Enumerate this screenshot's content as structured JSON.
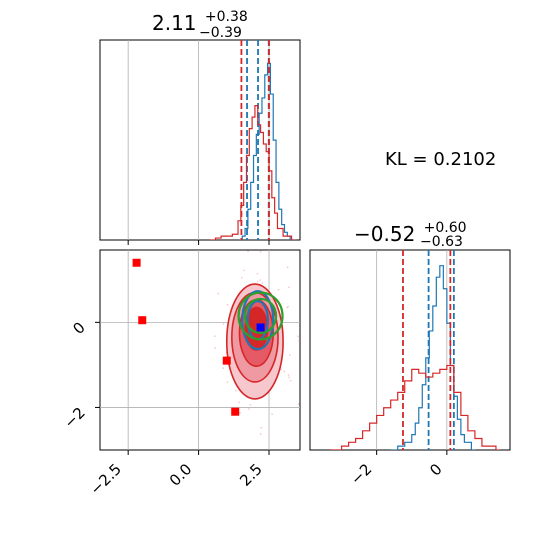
{
  "chart_data": {
    "type": "corner",
    "annotation": "KL = 0.2102",
    "colors": {
      "red": "#d62728",
      "blue": "#1f77b4",
      "green": "#2ca02c",
      "marker_blue": "#0000ff",
      "marker_red": "#ff0000"
    },
    "grid": true,
    "panels": [
      {
        "id": "p1",
        "kind": "histogram",
        "title": {
          "value": "2.11",
          "plus": "+0.38",
          "minus": "−0.39"
        },
        "xlim": [
          -3.5,
          3.6
        ],
        "ylim": [
          0,
          1
        ],
        "xgrid": [
          -2.5,
          0.0,
          2.5
        ],
        "series": [
          {
            "name": "blue",
            "vlines": [
              1.72,
              2.11,
              2.49
            ],
            "bins": [
              [
                1.45,
                0.0
              ],
              [
                1.55,
                0.02
              ],
              [
                1.65,
                0.06
              ],
              [
                1.75,
                0.16
              ],
              [
                1.85,
                0.3
              ],
              [
                1.95,
                0.44
              ],
              [
                2.05,
                0.55
              ],
              [
                2.15,
                0.66
              ],
              [
                2.25,
                0.74
              ],
              [
                2.35,
                0.86
              ],
              [
                2.45,
                0.92
              ],
              [
                2.55,
                0.76
              ],
              [
                2.65,
                0.52
              ],
              [
                2.75,
                0.3
              ],
              [
                2.85,
                0.16
              ],
              [
                2.95,
                0.08
              ],
              [
                3.05,
                0.04
              ],
              [
                3.15,
                0.02
              ],
              [
                3.25,
                0.0
              ]
            ]
          },
          {
            "name": "red",
            "vlines": [
              1.52,
              2.5
            ],
            "bins": [
              [
                0.4,
                0.0
              ],
              [
                0.6,
                0.01
              ],
              [
                0.8,
                0.02
              ],
              [
                1.0,
                0.02
              ],
              [
                1.2,
                0.03
              ],
              [
                1.4,
                0.1
              ],
              [
                1.5,
                0.18
              ],
              [
                1.6,
                0.3
              ],
              [
                1.7,
                0.44
              ],
              [
                1.8,
                0.58
              ],
              [
                1.9,
                0.64
              ],
              [
                2.0,
                0.7
              ],
              [
                2.1,
                0.6
              ],
              [
                2.2,
                0.56
              ],
              [
                2.3,
                0.5
              ],
              [
                2.4,
                0.46
              ],
              [
                2.5,
                0.36
              ],
              [
                2.6,
                0.22
              ],
              [
                2.7,
                0.14
              ],
              [
                2.8,
                0.06
              ],
              [
                3.0,
                0.02
              ],
              [
                3.3,
                0.0
              ]
            ]
          }
        ]
      },
      {
        "id": "p2",
        "kind": "2d-density",
        "xlim": [
          -3.5,
          3.6
        ],
        "ylim": [
          -3.0,
          1.7
        ],
        "xticks": [
          "−2.5",
          "0.0",
          "2.5"
        ],
        "xtick_values": [
          -2.5,
          0.0,
          2.5
        ],
        "yticks": [
          "0",
          "−2"
        ],
        "ytick_values": [
          0,
          -2
        ],
        "red_markers": [
          [
            -2.2,
            1.4
          ],
          [
            -2.0,
            0.05
          ],
          [
            1.0,
            -0.9
          ],
          [
            1.3,
            -2.1
          ]
        ],
        "blue_marker": [
          2.2,
          -0.12
        ],
        "contours": {
          "red": [
            {
              "cx": 2.0,
              "cy": -0.45,
              "rx": 1.0,
              "ry": 1.35
            },
            {
              "cx": 2.0,
              "cy": -0.35,
              "rx": 0.82,
              "ry": 1.05
            },
            {
              "cx": 2.05,
              "cy": -0.25,
              "rx": 0.6,
              "ry": 0.78
            },
            {
              "cx": 2.05,
              "cy": -0.15,
              "rx": 0.4,
              "ry": 0.5
            }
          ],
          "blue": [
            {
              "cx": 2.1,
              "cy": 0.05,
              "rx": 0.55,
              "ry": 0.68
            },
            {
              "cx": 2.1,
              "cy": 0.05,
              "rx": 0.36,
              "ry": 0.45
            }
          ],
          "green": [
            {
              "cx": 2.2,
              "cy": 0.15,
              "rx": 0.78,
              "ry": 0.55
            },
            {
              "cx": 2.2,
              "cy": 0.15,
              "rx": 0.55,
              "ry": 0.4
            }
          ]
        }
      },
      {
        "id": "p3",
        "kind": "histogram",
        "title": {
          "value": "−0.52",
          "plus": "+0.60",
          "minus": "−0.63"
        },
        "xlim": [
          -3.9,
          1.8
        ],
        "ylim": [
          0,
          1
        ],
        "xticks": [
          "−2",
          "0"
        ],
        "xtick_values": [
          -2,
          0
        ],
        "series": [
          {
            "name": "blue",
            "vlines": [
              -0.52,
              0.2
            ],
            "bins": [
              [
                -1.6,
                0.0
              ],
              [
                -1.4,
                0.02
              ],
              [
                -1.2,
                0.04
              ],
              [
                -1.0,
                0.08
              ],
              [
                -0.9,
                0.14
              ],
              [
                -0.8,
                0.22
              ],
              [
                -0.7,
                0.34
              ],
              [
                -0.6,
                0.48
              ],
              [
                -0.5,
                0.62
              ],
              [
                -0.4,
                0.75
              ],
              [
                -0.3,
                0.9
              ],
              [
                -0.2,
                0.96
              ],
              [
                -0.1,
                0.84
              ],
              [
                0.0,
                0.66
              ],
              [
                0.1,
                0.44
              ],
              [
                0.2,
                0.28
              ],
              [
                0.3,
                0.16
              ],
              [
                0.4,
                0.08
              ],
              [
                0.5,
                0.04
              ],
              [
                0.7,
                0.0
              ]
            ]
          },
          {
            "name": "red",
            "vlines": [
              -1.25,
              0.1
            ],
            "bins": [
              [
                -3.3,
                0.0
              ],
              [
                -3.0,
                0.02
              ],
              [
                -2.8,
                0.04
              ],
              [
                -2.6,
                0.06
              ],
              [
                -2.4,
                0.1
              ],
              [
                -2.2,
                0.14
              ],
              [
                -2.0,
                0.18
              ],
              [
                -1.8,
                0.22
              ],
              [
                -1.6,
                0.26
              ],
              [
                -1.4,
                0.3
              ],
              [
                -1.2,
                0.36
              ],
              [
                -1.0,
                0.42
              ],
              [
                -0.8,
                0.4
              ],
              [
                -0.6,
                0.38
              ],
              [
                -0.4,
                0.4
              ],
              [
                -0.2,
                0.42
              ],
              [
                0.0,
                0.44
              ],
              [
                0.2,
                0.3
              ],
              [
                0.4,
                0.18
              ],
              [
                0.6,
                0.1
              ],
              [
                0.8,
                0.06
              ],
              [
                1.0,
                0.02
              ],
              [
                1.4,
                0.0
              ]
            ]
          }
        ]
      }
    ]
  }
}
